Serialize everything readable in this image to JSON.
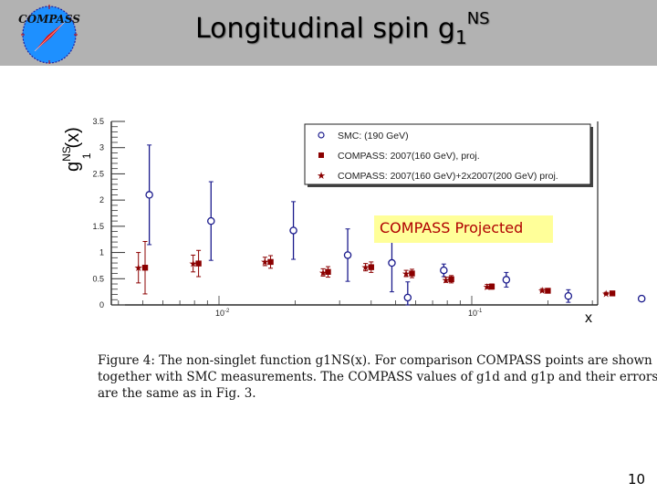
{
  "header": {
    "logo_text": "COMPASS",
    "title_main": "Longitudinal spin g",
    "title_sub": "1",
    "title_sup": "NS"
  },
  "chart_data": {
    "type": "scatter",
    "title": "",
    "xlabel": "x",
    "ylabel": "g1NS(x)",
    "xscale": "log",
    "xlim": [
      0.0035,
      0.75
    ],
    "ylim": [
      0,
      3.5
    ],
    "yticks": [
      "0",
      "0.5",
      "1",
      "1.5",
      "2",
      "2.5",
      "3",
      "3.5"
    ],
    "xticks": [
      "10^-2",
      "10^-1"
    ],
    "legend_position": "upper right",
    "annotation": "COMPASS Projected",
    "series": [
      {
        "name": "SMC: (190 GeV)",
        "marker": "open-circle",
        "color": "#1a1a8c",
        "x": [
          0.0053,
          0.0093,
          0.0197,
          0.0323,
          0.0483,
          0.0558,
          0.0775,
          0.137,
          0.241,
          0.47
        ],
        "y": [
          2.1,
          1.6,
          1.42,
          0.95,
          0.8,
          0.14,
          0.66,
          0.48,
          0.17,
          0.12
        ],
        "err": [
          0.95,
          0.75,
          0.55,
          0.5,
          0.55,
          0.3,
          0.12,
          0.14,
          0.12,
          0.05
        ]
      },
      {
        "name": "COMPASS: 2007(160 GeV), proj.",
        "marker": "filled-square",
        "color": "#8b0000",
        "x": [
          0.0051,
          0.0083,
          0.016,
          0.027,
          0.04,
          0.058,
          0.083,
          0.12,
          0.2,
          0.36
        ],
        "y": [
          0.71,
          0.79,
          0.82,
          0.63,
          0.72,
          0.6,
          0.49,
          0.35,
          0.27,
          0.22
        ],
        "err": [
          0.5,
          0.25,
          0.12,
          0.1,
          0.1,
          0.08,
          0.07,
          0.05,
          0.04,
          0.03
        ]
      },
      {
        "name": "COMPASS: 2007(160 GeV)+2x2007(200 GeV) proj.",
        "marker": "star",
        "color": "#8b0000",
        "x": [
          0.0048,
          0.0079,
          0.0152,
          0.0258,
          0.038,
          0.055,
          0.079,
          0.115,
          0.19,
          0.34
        ],
        "y": [
          0.71,
          0.79,
          0.83,
          0.62,
          0.72,
          0.6,
          0.48,
          0.35,
          0.28,
          0.22
        ],
        "err": [
          0.29,
          0.16,
          0.08,
          0.07,
          0.07,
          0.06,
          0.05,
          0.04,
          0.03,
          0.02
        ]
      }
    ]
  },
  "legend": {
    "items": [
      "SMC: (190 GeV)",
      "COMPASS: 2007(160 GeV), proj.",
      "COMPASS: 2007(160 GeV)+2x2007(200 GeV) proj."
    ]
  },
  "axes": {
    "ylabel_main": "g",
    "ylabel_sup": "NS",
    "ylabel_sub": "1",
    "ylabel_tail": "(x)",
    "xlabel": "x",
    "xtick_labels": [
      "10",
      "10"
    ],
    "xtick_exps": [
      "-2",
      "-1"
    ]
  },
  "annotation": {
    "label": "COMPASS Projected"
  },
  "caption": {
    "line1": "Figure 4: The non-singlet function g1NS(x). For comparison COMPASS points are shown",
    "line2": "together with SMC measurements. The COMPASS values of g1d and g1p and their errors",
    "line3": "are the same as in Fig. 3."
  },
  "footer": {
    "page_number": "10"
  }
}
